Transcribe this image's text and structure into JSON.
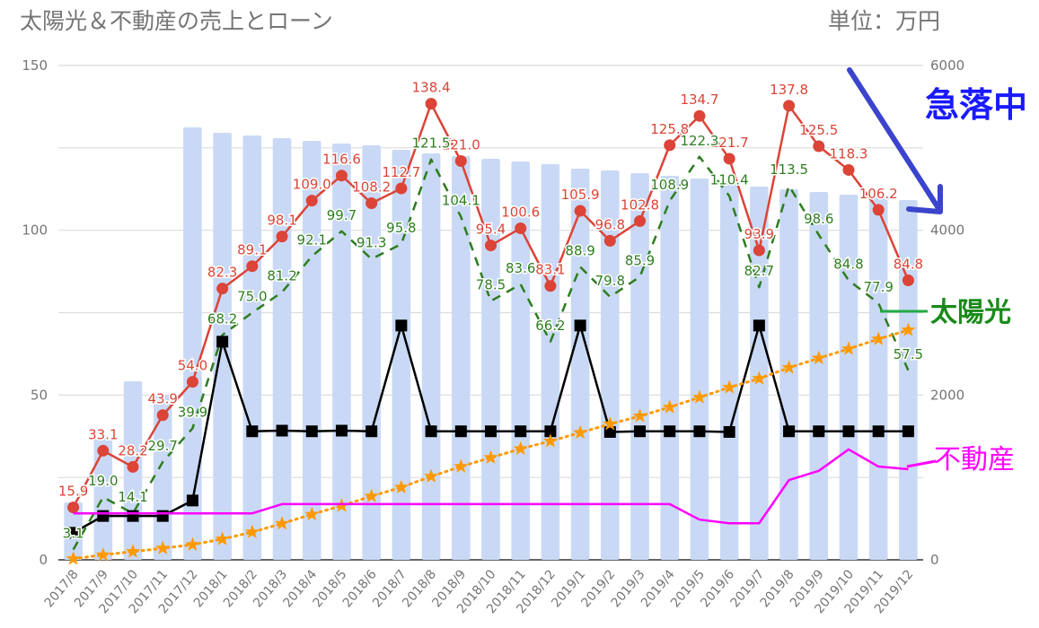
{
  "chart_data": {
    "type": "bar+line",
    "title": "太陽光＆不動産の売上とローン",
    "unit_label": "単位：万円",
    "categories": [
      "2017/8",
      "2017/9",
      "2017/10",
      "2017/11",
      "2017/12",
      "2018/1",
      "2018/2",
      "2018/3",
      "2018/4",
      "2018/5",
      "2018/6",
      "2018/7",
      "2018/8",
      "2018/9",
      "2018/10",
      "2018/11",
      "2018/12",
      "2019/1",
      "2019/2",
      "2019/3",
      "2019/4",
      "2019/5",
      "2019/6",
      "2019/7",
      "2019/8",
      "2019/9",
      "2019/10",
      "2019/11",
      "2019/12"
    ],
    "left_axis": {
      "ylim": [
        0,
        150
      ],
      "ticks": [
        "0",
        "50",
        "100",
        "150"
      ]
    },
    "right_axis": {
      "ylim": [
        0,
        6000
      ],
      "ticks": [
        "0",
        "2000",
        "4000",
        "6000"
      ]
    },
    "grid": true,
    "series": [
      {
        "kind": "bar",
        "axis": "right",
        "color": "#c9d9f5",
        "values": [
          697,
          1481,
          2167,
          2000,
          5249,
          5183,
          5150,
          5118,
          5085,
          5053,
          5031,
          4976,
          4933,
          4900,
          4868,
          4835,
          4802,
          4748,
          4726,
          4693,
          4661,
          4628,
          4595,
          4530,
          4497,
          4465,
          4432,
          4399,
          4367
        ]
      },
      {
        "kind": "line",
        "axis": "left",
        "color": "#db4437",
        "marker": "circle",
        "data_labels": true,
        "values": [
          15.9,
          33.1,
          28.2,
          43.9,
          54.0,
          82.3,
          89.1,
          98.1,
          109.0,
          116.6,
          108.2,
          112.7,
          138.4,
          121.0,
          95.4,
          100.6,
          83.1,
          105.9,
          96.8,
          102.8,
          125.8,
          134.7,
          121.7,
          93.9,
          137.8,
          125.5,
          118.3,
          106.2,
          84.8
        ]
      },
      {
        "kind": "line",
        "axis": "left",
        "color": "#2e7d1f",
        "style": "dashed",
        "data_labels": true,
        "name": "太陽光",
        "values": [
          3.1,
          19.0,
          14.1,
          29.7,
          39.9,
          68.2,
          75.0,
          81.2,
          92.1,
          99.7,
          91.3,
          95.8,
          121.5,
          104.1,
          78.5,
          83.6,
          66.2,
          88.9,
          79.8,
          85.9,
          108.9,
          122.3,
          110.4,
          82.7,
          113.5,
          98.6,
          84.8,
          77.9,
          57.5
        ]
      },
      {
        "kind": "line",
        "axis": "left",
        "color": "#000000",
        "marker": "square",
        "values": [
          8.2,
          13.3,
          13.3,
          13.3,
          18.0,
          66.2,
          39.0,
          39.2,
          39.0,
          39.2,
          39.0,
          71.1,
          39.0,
          39.0,
          39.0,
          39.0,
          39.0,
          71.1,
          38.8,
          39.0,
          39.0,
          39.0,
          38.8,
          71.1,
          39.0,
          39.0,
          39.0,
          39.0,
          39.0
        ]
      },
      {
        "kind": "line",
        "axis": "left",
        "color": "#ff9900",
        "style": "dotted",
        "marker": "star",
        "values": [
          0.3,
          1.5,
          2.5,
          3.5,
          4.6,
          6.3,
          8.4,
          11.0,
          13.8,
          16.4,
          19.3,
          22.0,
          25.3,
          28.3,
          31.0,
          33.7,
          36.0,
          38.6,
          41.2,
          43.6,
          46.3,
          49.3,
          52.3,
          55.0,
          58.3,
          61.2,
          64.0,
          67.0,
          69.7
        ]
      },
      {
        "kind": "line",
        "axis": "left",
        "color": "#ff00ff",
        "name": "不動産",
        "values": [
          14.1,
          14.1,
          14.1,
          14.1,
          14.1,
          14.1,
          14.1,
          16.9,
          16.9,
          16.9,
          16.9,
          16.9,
          16.9,
          16.9,
          16.9,
          16.9,
          16.9,
          16.9,
          16.9,
          16.9,
          16.9,
          12.2,
          11.1,
          11.1,
          24.2,
          27.0,
          33.5,
          28.3,
          27.5
        ]
      }
    ],
    "annotations": {
      "falling": {
        "text": "急落中",
        "color": "#1a1aff"
      },
      "solar": {
        "text": "太陽光",
        "color": "#1a8a1a"
      },
      "realestate": {
        "text": "不動産",
        "color": "#ff00ff"
      },
      "arrow_color": "#3b44cc"
    }
  }
}
